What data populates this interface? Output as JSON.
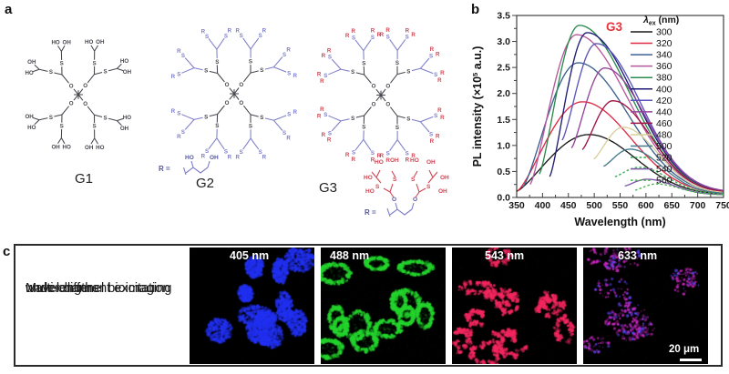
{
  "panel_a": {
    "letter": "a",
    "atoms": {
      "S": "S",
      "O": "O",
      "R": "R",
      "OH": "OH",
      "HO": "HO"
    },
    "r_eq": "R =",
    "molecules": [
      {
        "label": "G1",
        "core_color": "#46464e",
        "branch_color": "#46464e",
        "terminal_color": "#46464e",
        "generations": 1,
        "type": "diol",
        "scale": 0.8
      },
      {
        "label": "G2",
        "core_color": "#46464e",
        "branch_color": "#7d7dc9",
        "terminal_color": "#7d7dc9",
        "generations": 2,
        "type": "R",
        "scale": 0.82
      },
      {
        "label": "G3",
        "core_color": "#46464e",
        "branch_color": "#7d7dc9",
        "terminal_color": "#cf4553",
        "generations": 2,
        "type": "R2",
        "scale": 0.82
      }
    ]
  },
  "panel_b": {
    "letter": "b"
  },
  "chart_data": {
    "type": "line",
    "annotation": "G3",
    "annotation_color": "#e8333c",
    "xlabel": "Wavelength (nm)",
    "ylabel": "PL intensity (×10⁵ a.u.)",
    "ylabel_parts": {
      "prefix": "PL intensity (×10",
      "sup": "5",
      "suffix": " a.u.)"
    },
    "legend_title": "λex (nm)",
    "legend_title_parts": {
      "symbol": "λ",
      "sub": "ex",
      "rest": " (nm)"
    },
    "legend_position": "right-inside",
    "grid": false,
    "xlim": [
      350,
      750
    ],
    "ylim": [
      0,
      3.5
    ],
    "x_ticks": [
      350,
      400,
      450,
      500,
      550,
      600,
      650,
      700,
      750
    ],
    "y_ticks": [
      0.0,
      0.5,
      1.0,
      1.5,
      2.0,
      2.5,
      3.0,
      3.5
    ],
    "x_minor_step": 25,
    "y_minor_step": 0.25,
    "series": [
      {
        "ex": "300",
        "color": "#1a1a1a",
        "dashed": false,
        "start_x": 350,
        "start_y": 0.12,
        "peak_x": 490,
        "peak_y": 1.21,
        "end_x": 750,
        "end_y": 0.05
      },
      {
        "ex": "320",
        "color": "#df2b45",
        "dashed": false,
        "start_x": 352,
        "start_y": 0.13,
        "peak_x": 477,
        "peak_y": 1.84,
        "end_x": 750,
        "end_y": 0.05
      },
      {
        "ex": "340",
        "color": "#3c6090",
        "dashed": false,
        "start_x": 362,
        "start_y": 0.2,
        "peak_x": 469,
        "peak_y": 2.59,
        "end_x": 750,
        "end_y": 0.05
      },
      {
        "ex": "360",
        "color": "#b5599d",
        "dashed": false,
        "start_x": 376,
        "start_y": 0.25,
        "peak_x": 466,
        "peak_y": 3.13,
        "end_x": 750,
        "end_y": 0.06
      },
      {
        "ex": "380",
        "color": "#2b8a4d",
        "dashed": false,
        "start_x": 394,
        "start_y": 0.45,
        "peak_x": 471,
        "peak_y": 3.31,
        "end_x": 750,
        "end_y": 0.07
      },
      {
        "ex": "400",
        "color": "#1d1d78",
        "dashed": false,
        "start_x": 414,
        "start_y": 0.4,
        "peak_x": 486,
        "peak_y": 3.17,
        "end_x": 750,
        "end_y": 0.08
      },
      {
        "ex": "420",
        "color": "#5b55bb",
        "dashed": false,
        "start_x": 438,
        "start_y": 1.1,
        "peak_x": 504,
        "peak_y": 2.96,
        "end_x": 750,
        "end_y": 0.09
      },
      {
        "ex": "440",
        "color": "#93439b",
        "dashed": false,
        "start_x": 456,
        "start_y": 0.95,
        "peak_x": 520,
        "peak_y": 2.49,
        "end_x": 750,
        "end_y": 0.1
      },
      {
        "ex": "460",
        "color": "#a01545",
        "dashed": false,
        "start_x": 477,
        "start_y": 0.92,
        "peak_x": 536,
        "peak_y": 1.86,
        "end_x": 750,
        "end_y": 0.09
      },
      {
        "ex": "480",
        "color": "#d8d09c",
        "dashed": false,
        "start_x": 499,
        "start_y": 0.74,
        "peak_x": 556,
        "peak_y": 1.35,
        "end_x": 750,
        "end_y": 0.08
      },
      {
        "ex": "500",
        "color": "#477a8c",
        "dashed": false,
        "start_x": 518,
        "start_y": 0.6,
        "peak_x": 569,
        "peak_y": 0.93,
        "end_x": 750,
        "end_y": 0.07
      },
      {
        "ex": "520",
        "color": "#2fae4f",
        "dashed": true,
        "start_x": 540,
        "start_y": 0.4,
        "peak_x": 587,
        "peak_y": 0.58,
        "end_x": 750,
        "end_y": 0.06
      },
      {
        "ex": "540",
        "color": "#7e57a8",
        "dashed": false,
        "start_x": 559,
        "start_y": 0.22,
        "peak_x": 602,
        "peak_y": 0.35,
        "end_x": 750,
        "end_y": 0.05
      },
      {
        "ex": "560",
        "color": "#49b44f",
        "dashed": true,
        "start_x": 579,
        "start_y": 0.14,
        "peak_x": 620,
        "peak_y": 0.26,
        "end_x": 750,
        "end_y": 0.05
      }
    ]
  },
  "panel_c": {
    "letter": "c",
    "caption_lines": [
      "Multi-channel bioimaging",
      "under different excitation",
      "wavelengths"
    ],
    "images": [
      {
        "label": "405 nm",
        "color": "#2130f0",
        "style": "fill",
        "seed": 7,
        "cells": 11
      },
      {
        "label": "488 nm",
        "color": "#23d32c",
        "style": "ring",
        "seed": 13,
        "cells": 13
      },
      {
        "label": "543 nm",
        "color": "#f2265e",
        "style": "granule",
        "seed": 21,
        "cells": 12
      },
      {
        "label": "633 nm",
        "color": "#d428c8",
        "accent": "#5a48ff",
        "style": "sparse",
        "seed": 29,
        "cells": 12
      }
    ],
    "scale_bar_label": "20 μm"
  }
}
